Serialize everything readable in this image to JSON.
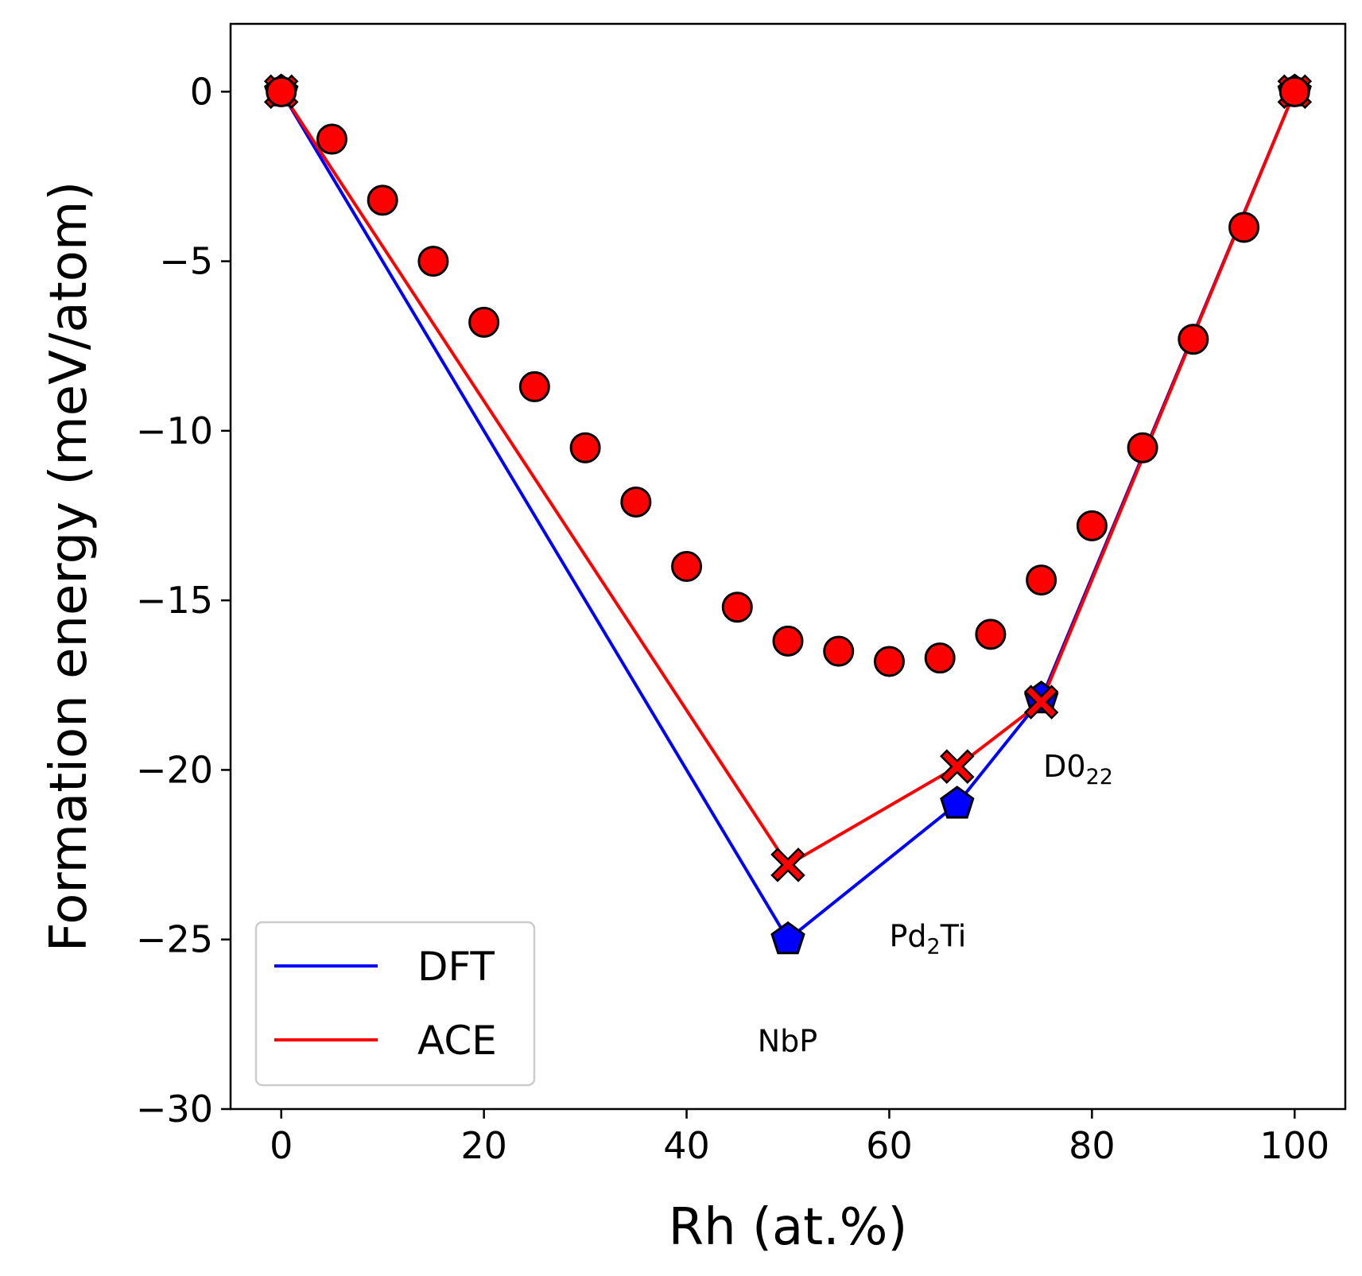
{
  "chart_data": {
    "type": "scatter",
    "xlabel": "Rh (at.%)",
    "ylabel": "Formation energy (meV/atom)",
    "xlim": [
      -5,
      105
    ],
    "ylim": [
      -30,
      2
    ],
    "xticks": [
      0,
      20,
      40,
      60,
      80,
      100
    ],
    "yticks": [
      0,
      -5,
      -10,
      -15,
      -20,
      -25,
      -30
    ],
    "xtick_labels": [
      "0",
      "20",
      "40",
      "60",
      "80",
      "100"
    ],
    "ytick_labels": [
      "0",
      "−5",
      "−10",
      "−15",
      "−20",
      "−25",
      "−30"
    ],
    "grid": false,
    "legend_placement": "lower-left",
    "colors": {
      "dft": "#0000ff",
      "ace": "#ff0000",
      "edge": "#000000"
    },
    "series": [
      {
        "name": "DFT",
        "kind": "hull-line",
        "marker": "pentagon",
        "x": [
          0,
          50,
          66.7,
          75,
          100
        ],
        "y": [
          0,
          -25.0,
          -21.0,
          -17.9,
          0
        ]
      },
      {
        "name": "ACE",
        "kind": "hull-line",
        "marker": "x",
        "x": [
          0,
          50,
          66.7,
          75,
          100
        ],
        "y": [
          0,
          -22.8,
          -19.9,
          -18.0,
          0
        ]
      },
      {
        "kind": "scatter",
        "marker": "circle",
        "x": [
          0,
          5,
          10,
          15,
          20,
          25,
          30,
          35,
          40,
          45,
          50,
          55,
          60,
          65,
          70,
          75,
          80,
          85,
          90,
          95,
          100
        ],
        "y": [
          0,
          -1.4,
          -3.2,
          -5.0,
          -6.8,
          -8.7,
          -10.5,
          -12.1,
          -14.0,
          -15.2,
          -16.2,
          -16.5,
          -16.8,
          -16.7,
          -16.0,
          -14.4,
          -12.8,
          -10.5,
          -7.3,
          -4.0,
          0
        ]
      }
    ],
    "annotations": [
      {
        "text": "NbP",
        "x": 47,
        "y": -28.0
      },
      {
        "text": "Pd",
        "sub": "2",
        "suffix": "Ti",
        "x": 60,
        "y": -24.9
      },
      {
        "text": "D0",
        "sub": "22",
        "suffix": "",
        "x": 75.2,
        "y": -19.9
      }
    ]
  }
}
